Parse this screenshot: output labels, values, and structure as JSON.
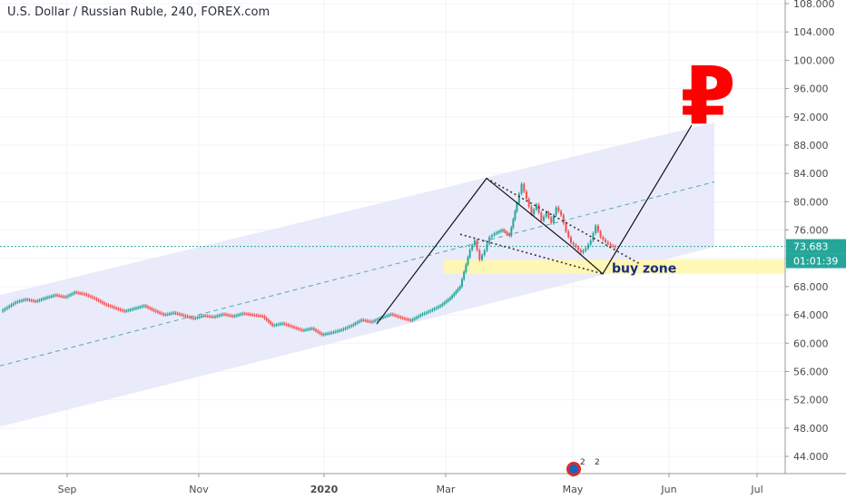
{
  "chart_data": {
    "type": "line",
    "title": "U.S. Dollar / Russian Ruble, 240, FOREX.com",
    "x_tick_labels": [
      "Sep",
      "Nov",
      "2020",
      "Mar",
      "May",
      "Jun",
      "Jul"
    ],
    "y_tick_labels": [
      "108.000",
      "104.000",
      "100.000",
      "96.000",
      "92.000",
      "88.000",
      "84.000",
      "80.000",
      "76.000",
      "72.000",
      "68.000",
      "64.000",
      "60.000",
      "56.000",
      "52.000",
      "48.000",
      "44.000"
    ],
    "ylim": [
      42,
      108
    ],
    "last_price": "73.683",
    "countdown": "01:01:39",
    "annotation_text": "buy zone",
    "buy_zone_range": [
      69.8,
      71.8
    ],
    "symbol": "₽",
    "event_badges": [
      "2",
      "2"
    ],
    "grid": true,
    "colors": {
      "up": "#26a69a",
      "down": "#ef5350",
      "channel_fill": "#e7e9fb",
      "price_line": "#26a69a",
      "buy_zone": "#fff7b0",
      "annotation": "#1a2a80",
      "symbol": "#ff0000"
    },
    "price_path": [
      [
        0,
        64.5
      ],
      [
        6,
        65.8
      ],
      [
        10,
        66.2
      ],
      [
        14,
        65.9
      ],
      [
        18,
        66.4
      ],
      [
        22,
        66.8
      ],
      [
        26,
        66.5
      ],
      [
        30,
        67.2
      ],
      [
        34,
        66.9
      ],
      [
        38,
        66.3
      ],
      [
        42,
        65.5
      ],
      [
        46,
        65.0
      ],
      [
        50,
        64.5
      ],
      [
        54,
        64.9
      ],
      [
        58,
        65.3
      ],
      [
        62,
        64.6
      ],
      [
        66,
        64.0
      ],
      [
        70,
        64.3
      ],
      [
        74,
        63.9
      ],
      [
        78,
        63.5
      ],
      [
        82,
        63.9
      ],
      [
        86,
        63.7
      ],
      [
        90,
        64.1
      ],
      [
        94,
        63.8
      ],
      [
        98,
        64.2
      ],
      [
        102,
        64.0
      ],
      [
        106,
        63.8
      ],
      [
        110,
        62.5
      ],
      [
        114,
        62.8
      ],
      [
        118,
        62.3
      ],
      [
        122,
        61.8
      ],
      [
        126,
        62.1
      ],
      [
        130,
        61.2
      ],
      [
        134,
        61.5
      ],
      [
        138,
        61.9
      ],
      [
        142,
        62.5
      ],
      [
        146,
        63.3
      ],
      [
        150,
        63.0
      ],
      [
        154,
        63.6
      ],
      [
        158,
        64.1
      ],
      [
        162,
        63.6
      ],
      [
        166,
        63.2
      ],
      [
        170,
        64.0
      ],
      [
        174,
        64.6
      ],
      [
        178,
        65.3
      ],
      [
        182,
        66.4
      ],
      [
        186,
        68.0
      ],
      [
        190,
        73.2
      ],
      [
        192,
        74.5
      ],
      [
        194,
        71.8
      ],
      [
        196,
        73.1
      ],
      [
        198,
        75.0
      ],
      [
        200,
        75.5
      ],
      [
        203,
        76.0
      ],
      [
        206,
        75.2
      ],
      [
        209,
        79.8
      ],
      [
        211,
        82.5
      ],
      [
        213,
        80.4
      ],
      [
        215,
        78.2
      ],
      [
        217,
        79.6
      ],
      [
        219,
        77.3
      ],
      [
        221,
        78.5
      ],
      [
        223,
        77.0
      ],
      [
        225,
        79.2
      ],
      [
        227,
        78.1
      ],
      [
        229,
        75.8
      ],
      [
        231,
        74.2
      ],
      [
        233,
        73.6
      ],
      [
        235,
        72.8
      ],
      [
        237,
        73.4
      ],
      [
        239,
        74.5
      ],
      [
        241,
        76.6
      ],
      [
        243,
        75.0
      ],
      [
        245,
        74.3
      ],
      [
        247,
        73.8
      ],
      [
        249,
        73.6
      ]
    ]
  }
}
